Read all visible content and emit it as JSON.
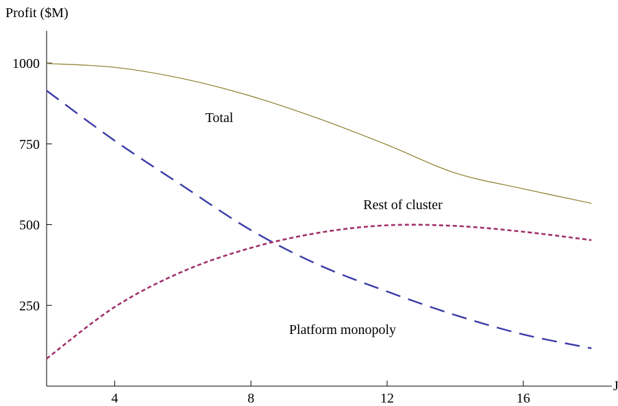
{
  "chart_data": {
    "type": "line",
    "title": "",
    "ylabel": "Profit ($M)",
    "xlabel": "J",
    "xlim": [
      2,
      18.6
    ],
    "ylim": [
      0,
      1100
    ],
    "xticks": [
      4,
      8,
      12,
      16
    ],
    "yticks": [
      250,
      500,
      750,
      1000
    ],
    "grid": false,
    "legend": "none",
    "x": [
      2,
      4,
      6,
      8,
      10,
      12,
      14,
      16,
      18
    ],
    "series": [
      {
        "name": "Total",
        "color": "#8b7d2a",
        "style": "solid",
        "values": [
          999,
          987,
          952,
          898,
          828,
          747,
          660,
          611,
          566
        ]
      },
      {
        "name": "Platform monopoly",
        "color": "#3a3aa8",
        "style": "dashed",
        "values": [
          915,
          760,
          620,
          483,
          375,
          293,
          220,
          160,
          117
        ]
      },
      {
        "name": "Rest of cluster",
        "color": "#a0306a",
        "style": "dotted",
        "values": [
          85,
          245,
          355,
          428,
          475,
          498,
          496,
          478,
          452
        ]
      }
    ],
    "annotations": [
      {
        "text": "Total",
        "series": "Total"
      },
      {
        "text": "Rest of cluster",
        "series": "Rest of cluster"
      },
      {
        "text": "Platform monopoly",
        "series": "Platform monopoly"
      }
    ]
  }
}
